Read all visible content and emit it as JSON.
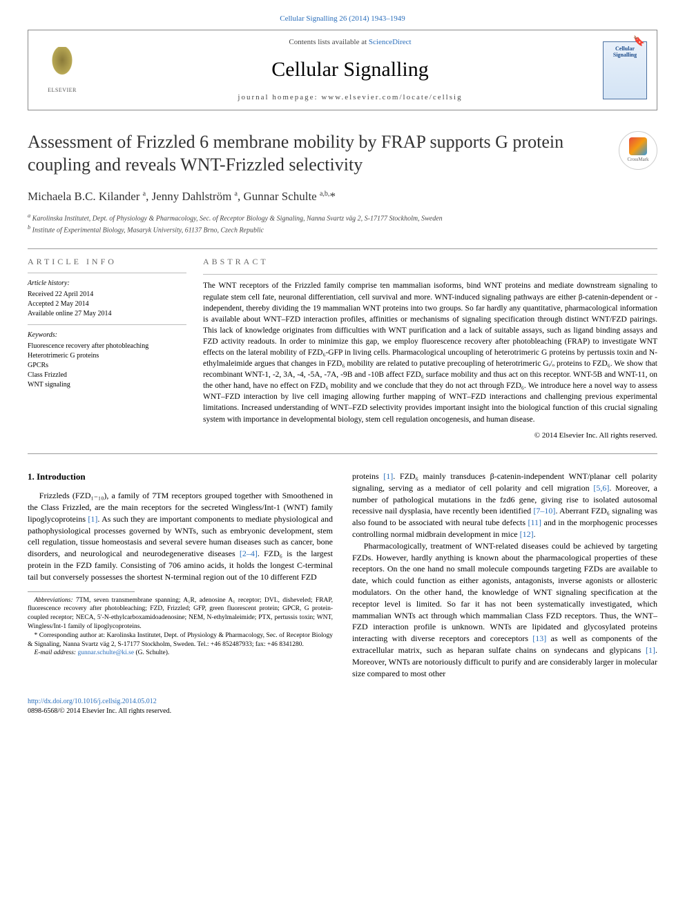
{
  "header": {
    "citation": "Cellular Signalling 26 (2014) 1943–1949",
    "contents_prefix": "Contents lists available at ",
    "contents_link": "ScienceDirect",
    "journal_name": "Cellular Signalling",
    "homepage_label": "journal homepage: ",
    "homepage_url": "www.elsevier.com/locate/cellsig",
    "elsevier_label": "ELSEVIER",
    "cover_title": "Cellular Signalling"
  },
  "article": {
    "title": "Assessment of Frizzled 6 membrane mobility by FRAP supports G protein coupling and reveals WNT-Frizzled selectivity",
    "crossmark_label": "CrossMark",
    "authors_html": "Michaela B.C. Kilander <sup>a</sup>, Jenny Dahlström <sup>a</sup>, Gunnar Schulte <sup>a,b,</sup>*",
    "affiliations": {
      "a": "Karolinska Institutet, Dept. of Physiology & Pharmacology, Sec. of Receptor Biology & Signaling, Nanna Svartz väg 2, S-17177 Stockholm, Sweden",
      "b": "Institute of Experimental Biology, Masaryk University, 61137 Brno, Czech Republic"
    }
  },
  "info": {
    "heading": "ARTICLE INFO",
    "history_label": "Article history:",
    "received": "Received 22 April 2014",
    "accepted": "Accepted 2 May 2014",
    "online": "Available online 27 May 2014",
    "keywords_label": "Keywords:",
    "keywords": [
      "Fluorescence recovery after photobleaching",
      "Heterotrimeric G proteins",
      "GPCRs",
      "Class Frizzled",
      "WNT signaling"
    ]
  },
  "abstract": {
    "heading": "ABSTRACT",
    "text": "The WNT receptors of the Frizzled family comprise ten mammalian isoforms, bind WNT proteins and mediate downstream signaling to regulate stem cell fate, neuronal differentiation, cell survival and more. WNT-induced signaling pathways are either β-catenin-dependent or -independent, thereby dividing the 19 mammalian WNT proteins into two groups. So far hardly any quantitative, pharmacological information is available about WNT–FZD interaction profiles, affinities or mechanisms of signaling specification through distinct WNT/FZD pairings. This lack of knowledge originates from difficulties with WNT purification and a lack of suitable assays, such as ligand binding assays and FZD activity readouts. In order to minimize this gap, we employ fluorescence recovery after photobleaching (FRAP) to investigate WNT effects on the lateral mobility of FZD₆-GFP in living cells. Pharmacological uncoupling of heterotrimeric G proteins by pertussis toxin and N-ethylmaleimide argues that changes in FZD₆ mobility are related to putative precoupling of heterotrimeric Gᵢ/ₒ proteins to FZD₆. We show that recombinant WNT-1, -2, 3A, -4, -5A, -7A, -9B and -10B affect FZD₆ surface mobility and thus act on this receptor. WNT-5B and WNT-11, on the other hand, have no effect on FZD₆ mobility and we conclude that they do not act through FZD₆. We introduce here a novel way to assess WNT–FZD interaction by live cell imaging allowing further mapping of WNT–FZD interactions and challenging previous experimental limitations. Increased understanding of WNT–FZD selectivity provides important insight into the biological function of this crucial signaling system with importance in developmental biology, stem cell regulation oncogenesis, and human disease.",
    "copyright": "© 2014 Elsevier Inc. All rights reserved."
  },
  "body": {
    "section_heading": "1. Introduction",
    "p1_a": "Frizzleds (FZD₁₋₁₀), a family of 7TM receptors grouped together with Smoothened in the Class Frizzled, are the main receptors for the secreted Wingless/Int-1 (WNT) family lipoglycoproteins ",
    "p1_ref1": "[1]",
    "p1_b": ". As such they are important components to mediate physiological and pathophysiological processes governed by WNTs, such as embryonic development, stem cell regulation, tissue homeostasis and several severe human diseases such as cancer, bone disorders, and neurological and neurodegenerative diseases ",
    "p1_ref2": "[2–4]",
    "p1_c": ". FZD₆ is the largest protein in the FZD family. Consisting of 706 amino acids, it holds the longest C-terminal tail but conversely possesses the shortest N-terminal region out of the 10 different FZD",
    "p2_a": "proteins ",
    "p2_ref1": "[1]",
    "p2_b": ". FZD₆ mainly transduces β-catenin-independent WNT/planar cell polarity signaling, serving as a mediator of cell polarity and cell migration ",
    "p2_ref2": "[5,6]",
    "p2_c": ". Moreover, a number of pathological mutations in the fzd6 gene, giving rise to isolated autosomal recessive nail dysplasia, have recently been identified ",
    "p2_ref3": "[7–10]",
    "p2_d": ". Aberrant FZD₆ signaling was also found to be associated with neural tube defects ",
    "p2_ref4": "[11]",
    "p2_e": " and in the morphogenic processes controlling normal midbrain development in mice ",
    "p2_ref5": "[12]",
    "p2_f": ".",
    "p3_a": "Pharmacologically, treatment of WNT-related diseases could be achieved by targeting FZDs. However, hardly anything is known about the pharmacological properties of these receptors. On the one hand no small molecule compounds targeting FZDs are available to date, which could function as either agonists, antagonists, inverse agonists or allosteric modulators. On the other hand, the knowledge of WNT signaling specification at the receptor level is limited. So far it has not been systematically investigated, which mammalian WNTs act through which mammalian Class FZD receptors. Thus, the WNT–FZD interaction profile is unknown. WNTs are lipidated and glycosylated proteins interacting with diverse receptors and coreceptors ",
    "p3_ref1": "[13]",
    "p3_b": " as well as components of the extracellular matrix, such as heparan sulfate chains on syndecans and glypicans ",
    "p3_ref2": "[1]",
    "p3_c": ". Moreover, WNTs are notoriously difficult to purify and are considerably larger in molecular size compared to most other"
  },
  "footnotes": {
    "abbrev_label": "Abbreviations:",
    "abbrev_text": " 7TM, seven transmembrane spanning; A₁R, adenosine A₁ receptor; DVL, disheveled; FRAP, fluorescence recovery after photobleaching; FZD, Frizzled; GFP, green fluorescent protein; GPCR, G protein-coupled receptor; NECA, 5′-N-ethylcarboxamidoadenosine; NEM, N-ethylmaleimide; PTX, pertussis toxin; WNT, Wingless/Int-1 family of lipoglycoproteins.",
    "corr_marker": "*",
    "corr_text": " Corresponding author at: Karolinska Institutet, Dept. of Physiology & Pharmacology, Sec. of Receptor Biology & Signaling, Nanna Svartz väg 2, S-17177 Stockholm, Sweden. Tel.: +46 852487933; fax: +46 8341280.",
    "email_label": "E-mail address: ",
    "email": "gunnar.schulte@ki.se",
    "email_suffix": " (G. Schulte)."
  },
  "doi": {
    "url": "http://dx.doi.org/10.1016/j.cellsig.2014.05.012",
    "issn_line": "0898-6568/© 2014 Elsevier Inc. All rights reserved."
  },
  "colors": {
    "link": "#2a6ebb",
    "text": "#000000",
    "muted": "#666666",
    "rule": "#999999"
  }
}
